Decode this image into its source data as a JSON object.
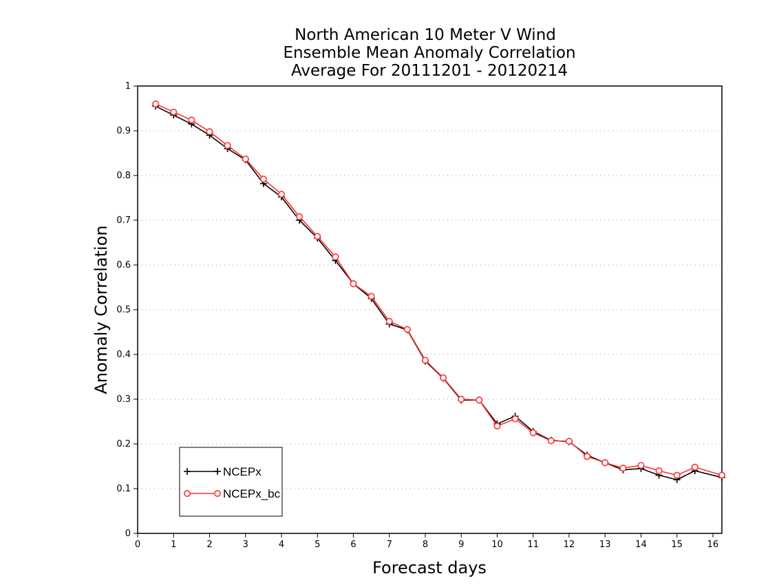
{
  "chart_data": {
    "type": "line",
    "title": [
      "North American 10 Meter V Wind",
      "Ensemble Mean Anomaly Correlation",
      "Average For 20111201 - 20120214"
    ],
    "xlabel": "Forecast days",
    "ylabel": "Anomaly Correlation",
    "xlim": [
      0,
      16.25
    ],
    "ylim": [
      0,
      1
    ],
    "x_ticks": [
      0,
      1,
      2,
      3,
      4,
      5,
      6,
      7,
      8,
      9,
      10,
      11,
      12,
      13,
      14,
      15,
      16
    ],
    "x_tick_labels": [
      "0",
      "1",
      "2",
      "3",
      "4",
      "5",
      "6",
      "7",
      "8",
      "9",
      "10",
      "11",
      "12",
      "13",
      "14",
      "15",
      "16"
    ],
    "y_ticks": [
      0,
      0.1,
      0.2,
      0.3,
      0.4,
      0.5,
      0.6,
      0.7,
      0.8,
      0.9,
      1
    ],
    "y_tick_labels": [
      "0",
      "0.1",
      "0.2",
      "0.3",
      "0.4",
      "0.5",
      "0.6",
      "0.7",
      "0.8",
      "0.9",
      "1"
    ],
    "grid": "horizontal dotted",
    "legend_position": "bottom-left",
    "x": [
      0.5,
      1,
      1.5,
      2,
      2.5,
      3,
      3.5,
      4,
      4.5,
      5,
      5.5,
      6,
      6.5,
      7,
      7.5,
      8,
      8.5,
      9,
      9.5,
      10,
      10.5,
      11,
      11.5,
      12,
      12.5,
      13,
      13.5,
      14,
      14.5,
      15,
      15.5,
      16.25
    ],
    "series": [
      {
        "name": "NCEPx",
        "color": "#000000",
        "marker": "plus",
        "values": [
          0.955,
          0.935,
          0.915,
          0.89,
          0.86,
          0.835,
          0.782,
          0.752,
          0.7,
          0.66,
          0.61,
          0.558,
          0.525,
          0.468,
          0.455,
          0.385,
          0.347,
          0.298,
          0.298,
          0.245,
          0.262,
          0.228,
          0.208,
          0.205,
          0.175,
          0.158,
          0.142,
          0.145,
          0.13,
          0.12,
          0.14,
          0.125
        ]
      },
      {
        "name": "NCEPx_bc",
        "color": "#ff3030",
        "marker": "circle",
        "values": [
          0.96,
          0.942,
          0.924,
          0.898,
          0.867,
          0.837,
          0.792,
          0.758,
          0.708,
          0.664,
          0.618,
          0.558,
          0.53,
          0.474,
          0.456,
          0.387,
          0.348,
          0.3,
          0.298,
          0.24,
          0.256,
          0.225,
          0.207,
          0.206,
          0.172,
          0.158,
          0.146,
          0.152,
          0.14,
          0.13,
          0.148,
          0.13
        ]
      }
    ]
  }
}
